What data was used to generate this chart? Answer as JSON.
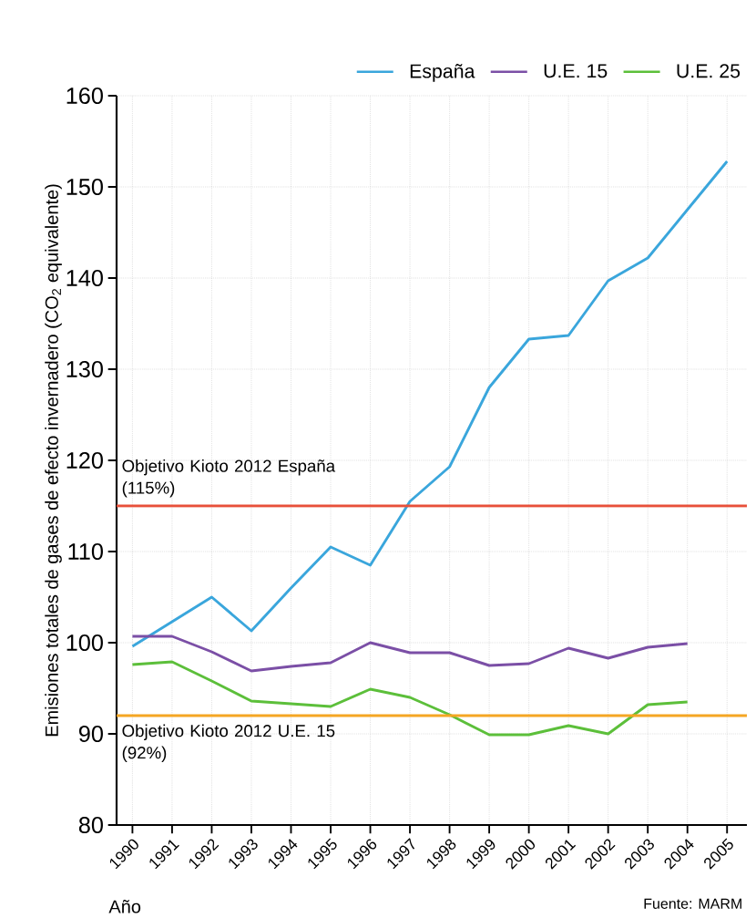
{
  "chart_data": {
    "type": "line",
    "ylabel": "Emisiones totales de gases de efecto invernadero (CO$_{2}$ equivalente)",
    "xlabel": "Año",
    "x": [
      1990,
      1991,
      1992,
      1993,
      1994,
      1995,
      1996,
      1997,
      1998,
      1999,
      2000,
      2001,
      2002,
      2003,
      2004,
      2005
    ],
    "series": [
      {
        "name": "España",
        "color": "#3aa6dc",
        "values": [
          99.6,
          102.3,
          105,
          101.3,
          106,
          110.5,
          108.5,
          115.5,
          119.3,
          128,
          133.3,
          133.7,
          139.7,
          142.2,
          147.5,
          152.8
        ]
      },
      {
        "name": "U.E. 15",
        "color": "#7b4fa6",
        "values": [
          100.7,
          100.7,
          99,
          96.9,
          97.4,
          97.8,
          100,
          98.9,
          98.9,
          97.5,
          97.7,
          99.4,
          98.3,
          99.5,
          99.9,
          null
        ]
      },
      {
        "name": "U.E. 25",
        "color": "#5cbf3a",
        "values": [
          97.6,
          97.9,
          95.8,
          93.6,
          93.3,
          93,
          94.9,
          94,
          92.1,
          89.9,
          89.9,
          90.9,
          90,
          93.2,
          93.5,
          null
        ]
      }
    ],
    "xlim": [
      1989.6,
      2005.5
    ],
    "xticks": [
      1990,
      1991,
      1992,
      1993,
      1994,
      1995,
      1996,
      1997,
      1998,
      1999,
      2000,
      2001,
      2002,
      2003,
      2004,
      2005
    ],
    "ylim": [
      80,
      160
    ],
    "yticks": [
      80,
      90,
      100,
      110,
      120,
      130,
      140,
      150,
      160
    ],
    "ref_lines": [
      {
        "axis": "y",
        "value": 115,
        "label": "Objetivo Kioto 2012 España (115%)",
        "color": "#e8503a"
      },
      {
        "axis": "y",
        "value": 92,
        "label": "Objetivo Kioto 2012 U.E. 15 (92%)",
        "color": "#f5a623"
      }
    ],
    "annotations": [
      "Fuente: MARM"
    ],
    "grid": true,
    "legend": "top",
    "marker": "none",
    "line_style": "solid"
  }
}
